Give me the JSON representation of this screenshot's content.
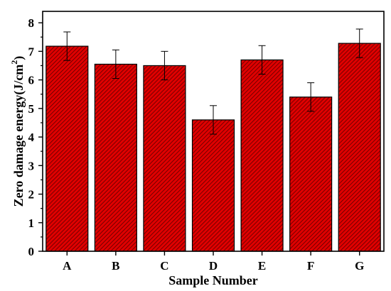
{
  "chart_data": {
    "type": "bar",
    "xlabel": "Sample Number",
    "ylabel_main": "Zero damage energy(J/cm",
    "ylabel_sup": "2",
    "ylabel_close": ")",
    "categories": [
      "A",
      "B",
      "C",
      "D",
      "E",
      "F",
      "G"
    ],
    "values": [
      7.18,
      6.55,
      6.5,
      4.6,
      6.7,
      5.4,
      7.28
    ],
    "errors": [
      0.5,
      0.5,
      0.5,
      0.5,
      0.5,
      0.5,
      0.5
    ],
    "ylim": [
      0,
      8.4
    ],
    "yticks": [
      0,
      1,
      2,
      3,
      4,
      5,
      6,
      7,
      8
    ],
    "bar_color": "#e00000",
    "hatch_color": "#5a0000",
    "grid": false,
    "legend": "none"
  }
}
